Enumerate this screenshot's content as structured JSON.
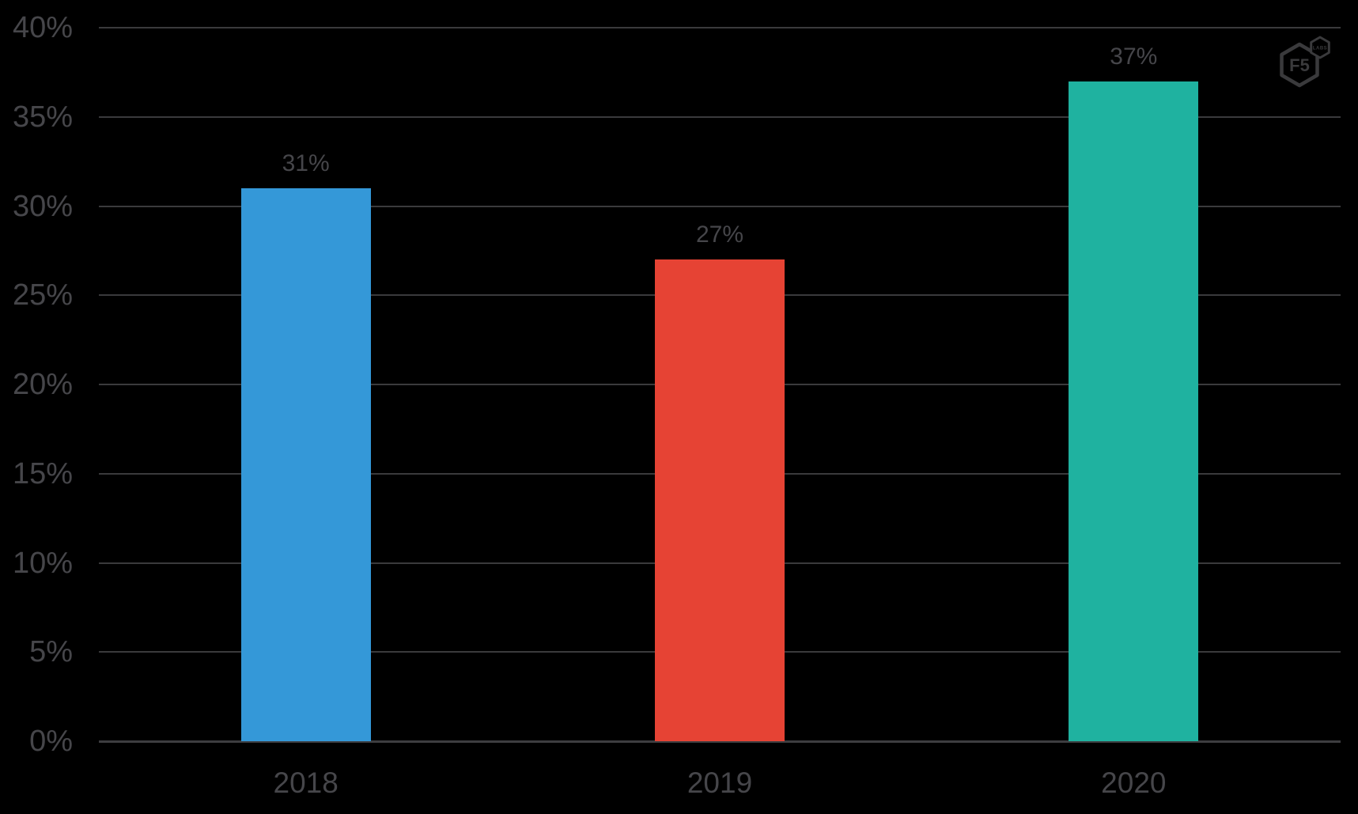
{
  "chart_data": {
    "type": "bar",
    "title": "",
    "categories": [
      "2018",
      "2019",
      "2020"
    ],
    "values": [
      31,
      27,
      37
    ],
    "value_labels": [
      "31%",
      "27%",
      "37%"
    ],
    "bar_colors": [
      "#3498d8",
      "#e64334",
      "#1fb2a0"
    ],
    "y_ticks": [
      {
        "value": 0,
        "label": "0%"
      },
      {
        "value": 5,
        "label": "5%"
      },
      {
        "value": 10,
        "label": "10%"
      },
      {
        "value": 15,
        "label": "15%"
      },
      {
        "value": 20,
        "label": "20%"
      },
      {
        "value": 25,
        "label": "25%"
      },
      {
        "value": 30,
        "label": "30%"
      },
      {
        "value": 35,
        "label": "35%"
      },
      {
        "value": 40,
        "label": "40%"
      }
    ],
    "ylim": [
      0,
      40
    ],
    "xlabel": "",
    "ylabel": "",
    "grid": true,
    "legend": false
  },
  "watermark": {
    "primary": "F5",
    "secondary": "LABS"
  },
  "colors": {
    "background": "#000000",
    "gridline": "#3a3a3c",
    "axis_line": "#3d3d40",
    "label_text": "#46464a",
    "logo": "#3a3a3c"
  }
}
